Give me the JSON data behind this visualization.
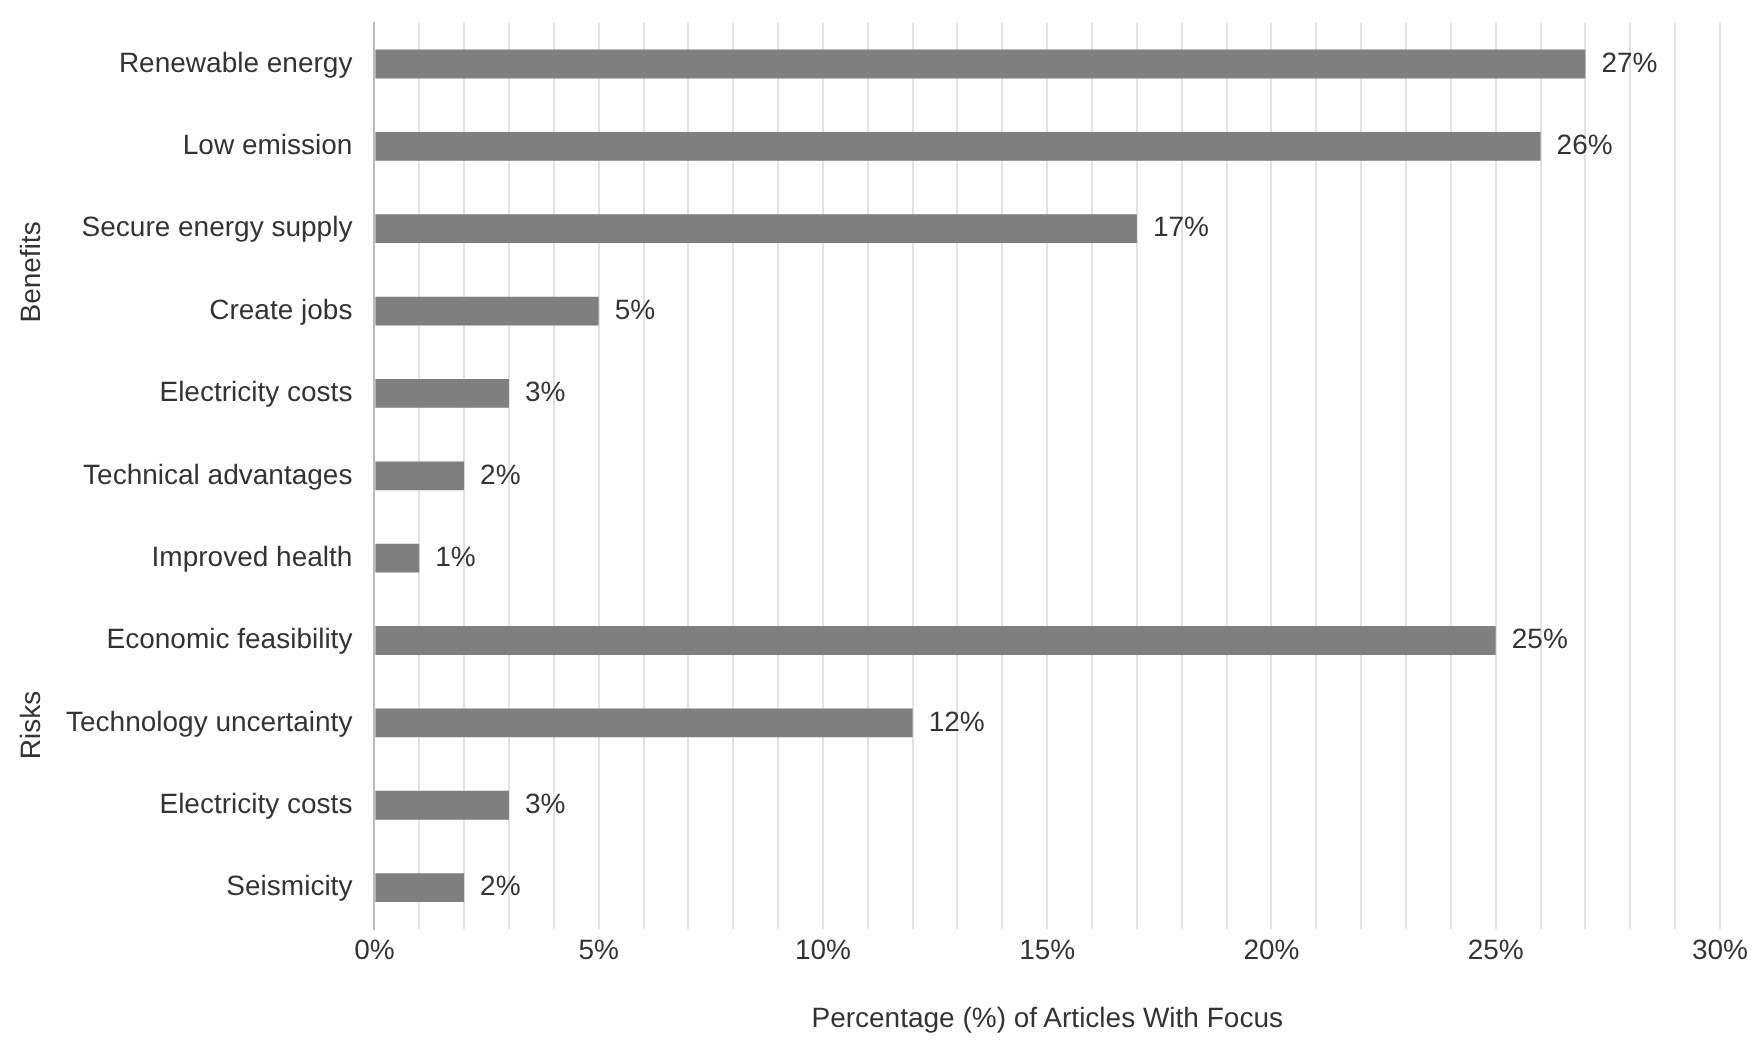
{
  "chart_data": {
    "type": "bar",
    "orientation": "horizontal",
    "xlabel": "Percentage (%) of Articles With Focus",
    "categories": [
      "Renewable energy",
      "Low emission",
      "Secure energy supply",
      "Create jobs",
      "Electricity costs",
      "Technical advantages",
      "Improved health",
      "Economic feasibility",
      "Technology uncertainty",
      "Electricity costs",
      "Seismicity"
    ],
    "values": [
      27,
      26,
      17,
      5,
      3,
      2,
      1,
      25,
      12,
      3,
      2
    ],
    "value_labels": [
      "27%",
      "26%",
      "17%",
      "5%",
      "3%",
      "2%",
      "1%",
      "25%",
      "12%",
      "3%",
      "2%"
    ],
    "color": "#7f7f7f",
    "xlim": [
      0,
      30
    ],
    "xticks": [
      {
        "value": 0,
        "label": "0%"
      },
      {
        "value": 1,
        "label": null
      },
      {
        "value": 2,
        "label": null
      },
      {
        "value": 3,
        "label": null
      },
      {
        "value": 4,
        "label": null
      },
      {
        "value": 5,
        "label": "5%"
      },
      {
        "value": 6,
        "label": null
      },
      {
        "value": 7,
        "label": null
      },
      {
        "value": 8,
        "label": null
      },
      {
        "value": 9,
        "label": null
      },
      {
        "value": 10,
        "label": "10%"
      },
      {
        "value": 11,
        "label": null
      },
      {
        "value": 12,
        "label": null
      },
      {
        "value": 13,
        "label": null
      },
      {
        "value": 14,
        "label": null
      },
      {
        "value": 15,
        "label": "15%"
      },
      {
        "value": 16,
        "label": null
      },
      {
        "value": 17,
        "label": null
      },
      {
        "value": 18,
        "label": null
      },
      {
        "value": 19,
        "label": null
      },
      {
        "value": 20,
        "label": "20%"
      },
      {
        "value": 21,
        "label": null
      },
      {
        "value": 22,
        "label": null
      },
      {
        "value": 23,
        "label": null
      },
      {
        "value": 24,
        "label": null
      },
      {
        "value": 25,
        "label": "25%"
      },
      {
        "value": 26,
        "label": null
      },
      {
        "value": 27,
        "label": null
      },
      {
        "value": 28,
        "label": null
      },
      {
        "value": 29,
        "label": null
      },
      {
        "value": 30,
        "label": "30%"
      }
    ],
    "grid": "x",
    "annotations": [
      "Benefits",
      "Risks"
    ]
  }
}
